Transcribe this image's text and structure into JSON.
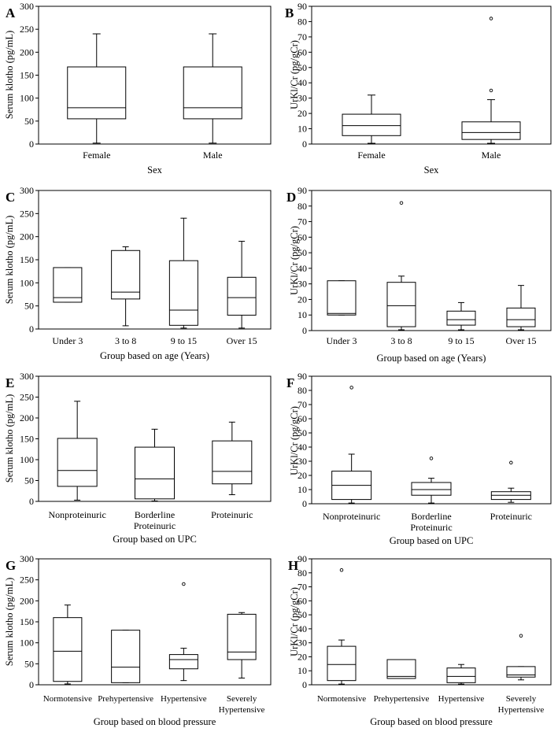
{
  "chart_data": [
    {
      "id": "A",
      "type": "boxplot",
      "title": "A",
      "xlabel": "Sex",
      "ylabel": "Serum klotho (pg/mL)",
      "ylim": [
        0,
        300
      ],
      "yticks": [
        0,
        50,
        100,
        150,
        200,
        250,
        300
      ],
      "categories": [
        "Female",
        "Male"
      ],
      "boxes": [
        {
          "min": 2,
          "q1": 55,
          "median": 79,
          "q3": 168,
          "max": 240,
          "outliers": []
        },
        {
          "min": 2,
          "q1": 55,
          "median": 79,
          "q3": 168,
          "max": 240,
          "outliers": []
        }
      ]
    },
    {
      "id": "B",
      "type": "boxplot",
      "title": "B",
      "xlabel": "Sex",
      "ylabel": "UrKl/Cr (pg/gCr)",
      "ylim": [
        0,
        90
      ],
      "yticks": [
        0,
        10,
        20,
        30,
        40,
        50,
        60,
        70,
        80,
        90
      ],
      "categories": [
        "Female",
        "Male"
      ],
      "boxes": [
        {
          "min": 0.5,
          "q1": 5.5,
          "median": 12,
          "q3": 19.5,
          "max": 32,
          "outliers": []
        },
        {
          "min": 0.5,
          "q1": 3,
          "median": 7.5,
          "q3": 14.5,
          "max": 29,
          "outliers": [
            35,
            82
          ]
        }
      ]
    },
    {
      "id": "C",
      "type": "boxplot",
      "title": "C",
      "xlabel": "Group based on age (Years)",
      "ylabel": "Serum klotho (pg/mL)",
      "ylim": [
        0,
        300
      ],
      "yticks": [
        0,
        50,
        100,
        150,
        200,
        250,
        300
      ],
      "categories": [
        "Under 3",
        "3 to 8",
        "9 to 15",
        "Over 15"
      ],
      "boxes": [
        {
          "min": 58,
          "q1": 58,
          "median": 68,
          "q3": 133,
          "max": 133,
          "outliers": []
        },
        {
          "min": 7,
          "q1": 65,
          "median": 80,
          "q3": 170,
          "max": 178,
          "outliers": []
        },
        {
          "min": 2,
          "q1": 8,
          "median": 41,
          "q3": 148,
          "max": 240,
          "outliers": []
        },
        {
          "min": 2,
          "q1": 30,
          "median": 68,
          "q3": 112,
          "max": 190,
          "outliers": []
        }
      ]
    },
    {
      "id": "D",
      "type": "boxplot",
      "title": "D",
      "xlabel": "Group based on age (Years)",
      "ylabel": "UrKl/Cr (pg/gCr)",
      "ylim": [
        0,
        90
      ],
      "yticks": [
        0,
        10,
        20,
        30,
        40,
        50,
        60,
        70,
        80,
        90
      ],
      "categories": [
        "Under 3",
        "3 to 8",
        "9 to 15",
        "Over 15"
      ],
      "boxes": [
        {
          "min": 10,
          "q1": 10,
          "median": 11,
          "q3": 32,
          "max": 32,
          "outliers": []
        },
        {
          "min": 0.5,
          "q1": 2.5,
          "median": 16,
          "q3": 31,
          "max": 35,
          "outliers": [
            82
          ]
        },
        {
          "min": 0.5,
          "q1": 3.5,
          "median": 7,
          "q3": 12.5,
          "max": 18,
          "outliers": []
        },
        {
          "min": 0.5,
          "q1": 2.5,
          "median": 7,
          "q3": 14.5,
          "max": 29,
          "outliers": []
        }
      ]
    },
    {
      "id": "E",
      "type": "boxplot",
      "title": "E",
      "xlabel": "Group based on UPC",
      "ylabel": "Serum klotho (pg/mL)",
      "ylim": [
        0,
        300
      ],
      "yticks": [
        0,
        50,
        100,
        150,
        200,
        250,
        300
      ],
      "categories": [
        "Nonproteinuric",
        "Borderline\nProteinuric",
        "Proteinuric"
      ],
      "boxes": [
        {
          "min": 3,
          "q1": 36,
          "median": 74,
          "q3": 151,
          "max": 240,
          "outliers": []
        },
        {
          "min": 1,
          "q1": 6,
          "median": 54,
          "q3": 130,
          "max": 173,
          "outliers": []
        },
        {
          "min": 16,
          "q1": 42,
          "median": 72,
          "q3": 145,
          "max": 190,
          "outliers": []
        }
      ]
    },
    {
      "id": "F",
      "type": "boxplot",
      "title": "F",
      "xlabel": "Group based on UPC",
      "ylabel": "UrKl/Cr (pg/gCr)",
      "ylim": [
        0,
        90
      ],
      "yticks": [
        0,
        10,
        20,
        30,
        40,
        50,
        60,
        70,
        80,
        90
      ],
      "categories": [
        "Nonproteinuric",
        "Borderline\nProteinuric",
        "Proteinuric"
      ],
      "boxes": [
        {
          "min": 0.5,
          "q1": 3,
          "median": 13,
          "q3": 23,
          "max": 35,
          "outliers": [
            82
          ]
        },
        {
          "min": 0.5,
          "q1": 6,
          "median": 10,
          "q3": 15,
          "max": 18,
          "outliers": [
            32
          ]
        },
        {
          "min": 1,
          "q1": 3,
          "median": 6,
          "q3": 8.5,
          "max": 11,
          "outliers": [
            29
          ]
        }
      ]
    },
    {
      "id": "G",
      "type": "boxplot",
      "title": "G",
      "xlabel": "Group based on blood pressure",
      "ylabel": "Serum klotho (pg/mL)",
      "ylim": [
        0,
        300
      ],
      "yticks": [
        0,
        50,
        100,
        150,
        200,
        250,
        300
      ],
      "categories": [
        "Normotensive",
        "Prehypertensive",
        "Hypertensive",
        "Severely\nHypertensive"
      ],
      "boxes": [
        {
          "min": 2,
          "q1": 8,
          "median": 80,
          "q3": 160,
          "max": 190,
          "outliers": []
        },
        {
          "min": 5,
          "q1": 5,
          "median": 42,
          "q3": 130,
          "max": 130,
          "outliers": []
        },
        {
          "min": 10,
          "q1": 38,
          "median": 60,
          "q3": 72,
          "max": 87,
          "outliers": [
            240
          ]
        },
        {
          "min": 16,
          "q1": 60,
          "median": 78,
          "q3": 168,
          "max": 172,
          "outliers": []
        }
      ]
    },
    {
      "id": "H",
      "type": "boxplot",
      "title": "H",
      "xlabel": "Group based on blood pressure",
      "ylabel": "UrKl/Cr (pg/gCr)",
      "ylim": [
        0,
        90
      ],
      "yticks": [
        0,
        10,
        20,
        30,
        40,
        50,
        60,
        70,
        80,
        90
      ],
      "categories": [
        "Normotensive",
        "Prehypertensive",
        "Hypertensive",
        "Severely\nHypertensive"
      ],
      "boxes": [
        {
          "min": 0.5,
          "q1": 3,
          "median": 14.5,
          "q3": 27.5,
          "max": 32,
          "outliers": [
            82
          ]
        },
        {
          "min": 4.5,
          "q1": 4.5,
          "median": 6,
          "q3": 18,
          "max": 18,
          "outliers": []
        },
        {
          "min": 0.5,
          "q1": 1.5,
          "median": 6,
          "q3": 12,
          "max": 14.5,
          "outliers": []
        },
        {
          "min": 3.5,
          "q1": 5.5,
          "median": 7,
          "q3": 13,
          "max": 13,
          "outliers": [
            35
          ]
        }
      ]
    }
  ]
}
